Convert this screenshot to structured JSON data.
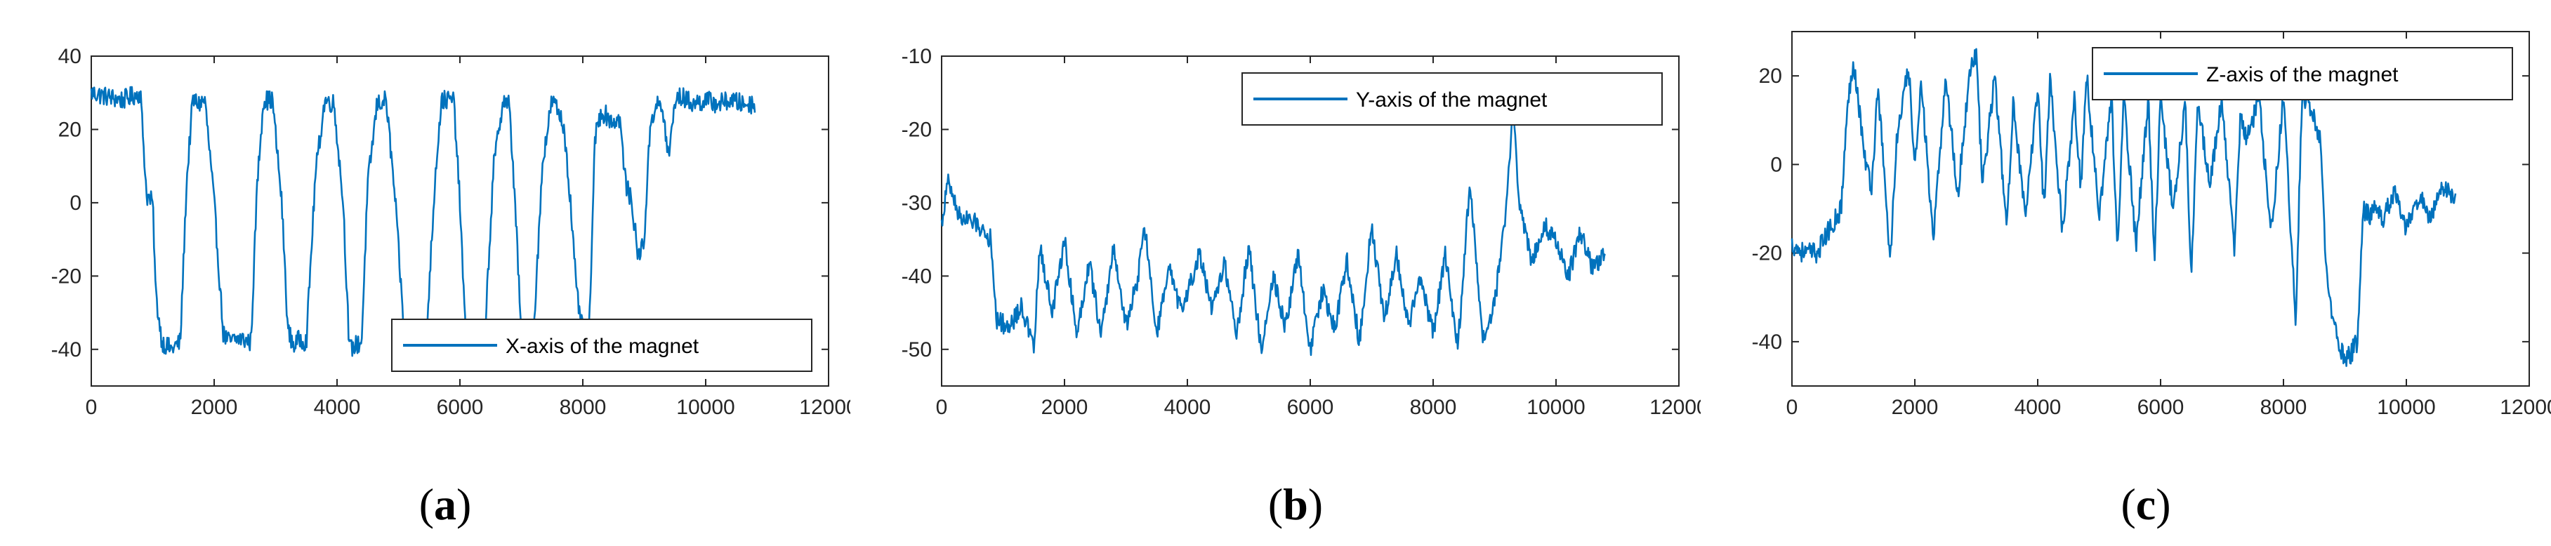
{
  "chart_data": [
    {
      "type": "line",
      "caption": "a",
      "xlim": [
        0,
        12000
      ],
      "ylim": [
        -50,
        40
      ],
      "xticks": [
        0,
        2000,
        4000,
        6000,
        8000,
        10000,
        12000
      ],
      "yticks": [
        40,
        20,
        0,
        -20,
        -40
      ],
      "legend": "bottom-right",
      "color": "#0072BD",
      "x_end": 10800,
      "series": [
        {
          "name": "X-axis of the magnet",
          "x": [
            0,
            500,
            800,
            900,
            1000,
            1050,
            1150,
            1300,
            1450,
            1550,
            1650,
            1750,
            1850,
            2000,
            2150,
            2250,
            2400,
            2600,
            2700,
            2800,
            2950,
            3100,
            3200,
            3300,
            3400,
            3500,
            3650,
            3800,
            3950,
            4100,
            4200,
            4300,
            4400,
            4500,
            4650,
            4800,
            4950,
            5100,
            5200,
            5300,
            5450,
            5600,
            5700,
            5900,
            6000,
            6100,
            6250,
            6400,
            6550,
            6700,
            6800,
            6900,
            7000,
            7100,
            7200,
            7350,
            7500,
            7600,
            7700,
            7800,
            7900,
            8000,
            8100,
            8200,
            8300,
            8500,
            8600,
            8700,
            8800,
            8900,
            9000,
            9100,
            9200,
            9300,
            9400,
            9500,
            9600,
            9700,
            9800,
            10000,
            10200,
            10400,
            10600,
            10800
          ],
          "y": [
            30,
            28,
            30,
            2,
            0,
            -25,
            -38,
            -40,
            -38,
            5,
            28,
            27,
            28,
            0,
            -36,
            -38,
            -37,
            -38,
            5,
            28,
            28,
            0,
            -35,
            -39,
            -37,
            -38,
            8,
            28,
            27,
            0,
            -40,
            -39,
            -38,
            5,
            27,
            28,
            0,
            -38,
            -41,
            -39,
            -38,
            8,
            28,
            28,
            0,
            -40,
            -38,
            -37,
            10,
            28,
            27,
            0,
            -37,
            -36,
            -35,
            12,
            28,
            25,
            20,
            0,
            -25,
            -35,
            -36,
            18,
            25,
            22,
            23,
            5,
            0,
            -15,
            -10,
            22,
            27,
            25,
            12,
            28,
            29,
            28,
            27,
            28,
            27,
            28,
            27,
            27
          ]
        }
      ]
    },
    {
      "type": "line",
      "caption": "b",
      "xlim": [
        0,
        12000
      ],
      "ylim": [
        -55,
        -10
      ],
      "xticks": [
        0,
        2000,
        4000,
        6000,
        8000,
        10000,
        12000
      ],
      "yticks": [
        -10,
        -20,
        -30,
        -40,
        -50
      ],
      "legend": "top-right",
      "color": "#0072BD",
      "x_end": 10800,
      "series": [
        {
          "name": "Y-axis of the magnet",
          "x": [
            0,
            100,
            300,
            600,
            800,
            900,
            1100,
            1300,
            1500,
            1600,
            1800,
            2000,
            2200,
            2400,
            2600,
            2800,
            3000,
            3200,
            3300,
            3500,
            3700,
            3900,
            4200,
            4400,
            4600,
            4800,
            5000,
            5200,
            5400,
            5600,
            5800,
            6000,
            6200,
            6400,
            6600,
            6800,
            7000,
            7200,
            7400,
            7600,
            7800,
            8000,
            8200,
            8400,
            8600,
            8800,
            9000,
            9200,
            9300,
            9400,
            9600,
            9800,
            10000,
            10200,
            10400,
            10600,
            10800
          ],
          "y": [
            -33,
            -27,
            -32,
            -33,
            -35,
            -46,
            -47,
            -44,
            -50,
            -36,
            -45,
            -35,
            -48,
            -38,
            -48,
            -36,
            -47,
            -40,
            -33,
            -48,
            -39,
            -45,
            -37,
            -45,
            -38,
            -48,
            -36,
            -50,
            -40,
            -47,
            -37,
            -50,
            -42,
            -47,
            -38,
            -49,
            -33,
            -46,
            -37,
            -47,
            -40,
            -48,
            -37,
            -50,
            -27,
            -49,
            -44,
            -30,
            -16,
            -30,
            -38,
            -33,
            -35,
            -40,
            -34,
            -39,
            -37
          ]
        }
      ]
    },
    {
      "type": "line",
      "caption": "c",
      "xlim": [
        0,
        12000
      ],
      "ylim": [
        -50,
        30
      ],
      "xticks": [
        0,
        2000,
        4000,
        6000,
        8000,
        10000,
        12000
      ],
      "yticks": [
        20,
        0,
        -20,
        -40
      ],
      "legend": "top-right",
      "color": "#0072BD",
      "x_end": 10800,
      "series": [
        {
          "name": "Z-axis of the magnet",
          "x": [
            0,
            200,
            400,
            600,
            800,
            900,
            1000,
            1200,
            1300,
            1400,
            1600,
            1700,
            1900,
            2000,
            2100,
            2300,
            2500,
            2700,
            2900,
            3000,
            3100,
            3300,
            3500,
            3600,
            3800,
            4000,
            4100,
            4200,
            4400,
            4600,
            4700,
            4800,
            5000,
            5200,
            5300,
            5400,
            5600,
            5800,
            5900,
            6000,
            6200,
            6400,
            6500,
            6600,
            6800,
            7000,
            7200,
            7300,
            7400,
            7600,
            7800,
            8000,
            8200,
            8300,
            8400,
            8600,
            8700,
            8800,
            9000,
            9200,
            9300,
            9400,
            9500,
            9600,
            9800,
            10000,
            10200,
            10400,
            10600,
            10800
          ],
          "y": [
            -18,
            -20,
            -20,
            -15,
            -10,
            12,
            24,
            0,
            -5,
            18,
            -22,
            5,
            22,
            -2,
            20,
            -18,
            20,
            -7,
            22,
            25,
            -5,
            20,
            -15,
            15,
            -13,
            18,
            -10,
            20,
            -15,
            15,
            -5,
            20,
            -12,
            16,
            -20,
            15,
            -18,
            15,
            -22,
            15,
            -10,
            14,
            -25,
            15,
            -5,
            15,
            -20,
            12,
            5,
            15,
            -15,
            15,
            -35,
            15,
            15,
            5,
            -25,
            -35,
            -45,
            -40,
            -10,
            -12,
            -8,
            -13,
            -6,
            -15,
            -7,
            -12,
            -5,
            -8
          ]
        }
      ]
    }
  ],
  "captions": [
    "(a)",
    "(b)",
    "(c)"
  ]
}
